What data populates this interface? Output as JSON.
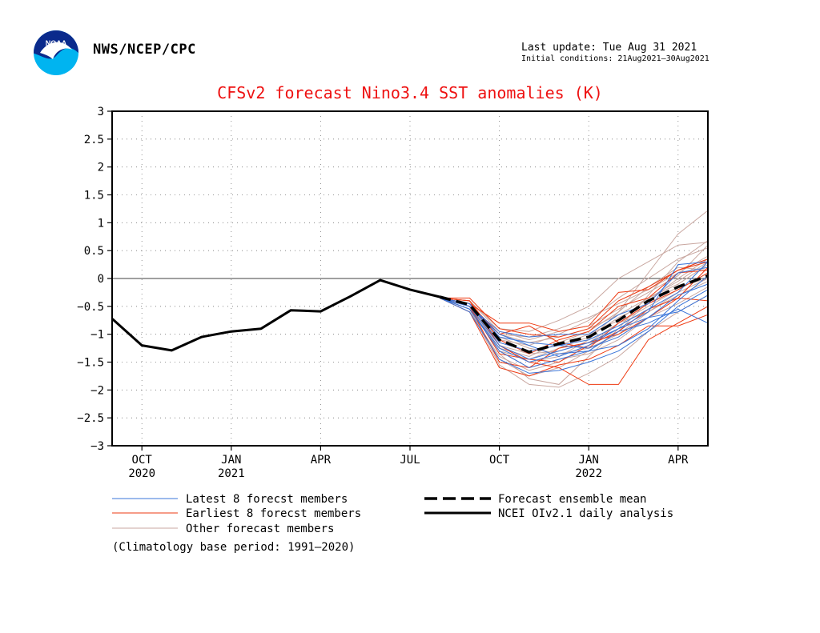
{
  "header": {
    "logo_text": "NOAA",
    "agency": "NWS/NCEP/CPC",
    "last_update": "Last update: Tue Aug 31 2021",
    "initial_conditions": "Initial conditions: 21Aug2021–30Aug2021"
  },
  "chart_data": {
    "type": "line",
    "title": "CFSv2 forecast Nino3.4 SST anomalies (K)",
    "xlabel": "",
    "ylabel": "",
    "ylim": [
      -3,
      3
    ],
    "y_ticks": [
      "3",
      "2.5",
      "2",
      "1.5",
      "1",
      "0.5",
      "0",
      "−0.5",
      "−1",
      "−1.5",
      "−2",
      "−2.5",
      "−3"
    ],
    "x_range": [
      "2020-09",
      "2022-05"
    ],
    "x_ticks": [
      {
        "month": "2020-10",
        "label": "OCT",
        "year": "2020"
      },
      {
        "month": "2021-01",
        "label": "JAN",
        "year": "2021"
      },
      {
        "month": "2021-04",
        "label": "APR",
        "year": ""
      },
      {
        "month": "2021-07",
        "label": "JUL",
        "year": ""
      },
      {
        "month": "2021-10",
        "label": "OCT",
        "year": ""
      },
      {
        "month": "2022-01",
        "label": "JAN",
        "year": "2022"
      },
      {
        "month": "2022-04",
        "label": "APR",
        "year": ""
      }
    ],
    "grid": true,
    "zero_line": true,
    "colors": {
      "observed": "#000000",
      "ensemble_mean": "#000000",
      "latest": "#3a74d8",
      "earliest": "#ee3a12",
      "other": "#c9a7a0"
    },
    "observed": {
      "name": "NCEI OIv2.1 daily analysis",
      "x": [
        "2020-09",
        "2020-10",
        "2020-11",
        "2020-12",
        "2021-01",
        "2021-02",
        "2021-03",
        "2021-04",
        "2021-05",
        "2021-06",
        "2021-07",
        "2021-08"
      ],
      "y": [
        -0.72,
        -1.2,
        -1.29,
        -1.05,
        -0.95,
        -0.9,
        -0.57,
        -0.59,
        -0.32,
        -0.03,
        -0.2,
        -0.33
      ]
    },
    "ensemble_mean": {
      "name": "Forecast ensemble mean",
      "x": [
        "2021-08",
        "2021-09",
        "2021-10",
        "2021-11",
        "2021-12",
        "2022-01",
        "2022-02",
        "2022-03",
        "2022-04",
        "2022-05"
      ],
      "y": [
        -0.33,
        -0.47,
        -1.1,
        -1.32,
        -1.17,
        -1.05,
        -0.75,
        -0.4,
        -0.15,
        0.05
      ]
    },
    "members_x": [
      "2021-08",
      "2021-09",
      "2021-10",
      "2021-11",
      "2021-12",
      "2022-01",
      "2022-02",
      "2022-03",
      "2022-04",
      "2022-05"
    ],
    "latest_members": {
      "name": "Latest 8 forecst members",
      "series": [
        [
          -0.35,
          -0.45,
          -1.05,
          -1.15,
          -1.2,
          -1.1,
          -0.85,
          -0.55,
          -0.25,
          0.3
        ],
        [
          -0.35,
          -0.5,
          -1.2,
          -1.45,
          -1.3,
          -1.15,
          -0.9,
          -0.6,
          0.25,
          0.3
        ],
        [
          -0.35,
          -0.55,
          -1.3,
          -1.6,
          -1.45,
          -1.3,
          -0.95,
          -0.8,
          -0.55,
          -0.8
        ],
        [
          -0.35,
          -0.5,
          -0.95,
          -1.05,
          -1.0,
          -1.0,
          -0.65,
          -0.45,
          0.1,
          0.2
        ],
        [
          -0.35,
          -0.6,
          -1.45,
          -1.7,
          -1.65,
          -1.5,
          -1.3,
          -0.95,
          -0.5,
          -0.2
        ],
        [
          -0.35,
          -0.45,
          -1.15,
          -1.3,
          -1.2,
          -1.25,
          -1.05,
          -0.7,
          -0.3,
          -0.1
        ],
        [
          -0.35,
          -0.5,
          -1.0,
          -1.2,
          -1.4,
          -1.2,
          -0.9,
          -0.7,
          -0.6,
          -0.3
        ],
        [
          -0.35,
          -0.55,
          -1.25,
          -1.5,
          -1.35,
          -1.3,
          -1.2,
          -0.9,
          -0.4,
          0.05
        ]
      ]
    },
    "earliest_members": {
      "name": "Earliest 8 forecst members",
      "series": [
        [
          -0.35,
          -0.35,
          -0.9,
          -1.0,
          -1.05,
          -0.9,
          -0.4,
          -0.15,
          0.15,
          0.35
        ],
        [
          -0.35,
          -0.4,
          -1.2,
          -1.5,
          -1.6,
          -1.9,
          -1.9,
          -1.1,
          -0.8,
          -0.5
        ],
        [
          -0.35,
          -0.45,
          -0.8,
          -0.8,
          -0.95,
          -0.85,
          -0.25,
          -0.2,
          0.15,
          0.3
        ],
        [
          -0.35,
          -0.5,
          -1.5,
          -1.6,
          -1.25,
          -1.15,
          -1.0,
          -0.7,
          -0.35,
          -0.4
        ],
        [
          -0.35,
          -0.45,
          -1.0,
          -0.85,
          -1.15,
          -1.25,
          -0.8,
          -0.45,
          -0.2,
          0.1
        ],
        [
          -0.35,
          -0.6,
          -1.6,
          -1.75,
          -1.55,
          -1.45,
          -1.2,
          -0.85,
          -0.85,
          -0.65
        ],
        [
          -0.35,
          -0.4,
          -1.1,
          -1.35,
          -1.1,
          -0.95,
          -0.5,
          -0.35,
          0.1,
          0.15
        ],
        [
          -0.35,
          -0.5,
          -1.35,
          -1.45,
          -1.5,
          -1.2,
          -0.95,
          -0.55,
          -0.35,
          0.2
        ]
      ]
    },
    "other_members": {
      "name": "Other forecast members",
      "series": [
        [
          -0.35,
          -0.45,
          -1.2,
          -1.5,
          -1.4,
          -1.1,
          -0.6,
          0.1,
          0.8,
          1.22
        ],
        [
          -0.35,
          -0.5,
          -1.35,
          -1.8,
          -1.9,
          -1.4,
          -0.9,
          -0.3,
          0.3,
          0.68
        ],
        [
          -0.35,
          -0.4,
          -0.9,
          -0.95,
          -0.75,
          -0.5,
          0.0,
          0.3,
          0.6,
          0.65
        ],
        [
          -0.35,
          -0.55,
          -1.55,
          -1.9,
          -1.95,
          -1.7,
          -1.4,
          -0.95,
          -0.6,
          -0.3
        ],
        [
          -0.35,
          -0.5,
          -1.1,
          -1.2,
          -1.0,
          -0.75,
          -0.35,
          0.0,
          0.35,
          0.55
        ],
        [
          -0.35,
          -0.45,
          -1.0,
          -1.05,
          -0.9,
          -0.7,
          -0.45,
          -0.2,
          0.1,
          0.4
        ],
        [
          -0.35,
          -0.6,
          -1.4,
          -1.65,
          -1.5,
          -1.2,
          -0.8,
          -0.6,
          -0.25,
          0.0
        ],
        [
          -0.35,
          -0.5,
          -1.25,
          -1.4,
          -1.15,
          -0.95,
          -0.6,
          -0.15,
          0.2,
          0.15
        ],
        [
          -0.35,
          -0.45,
          -1.15,
          -1.3,
          -1.2,
          -1.0,
          -0.75,
          -0.35,
          -0.1,
          0.25
        ],
        [
          -0.35,
          -0.55,
          -1.3,
          -1.6,
          -1.45,
          -1.35,
          -1.1,
          -0.7,
          -0.45,
          -0.15
        ],
        [
          -0.35,
          -0.4,
          -0.95,
          -1.1,
          -0.95,
          -0.85,
          -0.55,
          -0.25,
          0.05,
          0.6
        ],
        [
          -0.35,
          -0.5,
          -1.2,
          -1.35,
          -1.3,
          -1.15,
          -0.8,
          -0.5,
          -0.2,
          0.1
        ],
        [
          -0.35,
          -0.45,
          -1.05,
          -1.25,
          -1.35,
          -1.25,
          -1.0,
          -0.6,
          -0.3,
          -0.05
        ],
        [
          -0.35,
          -0.55,
          -1.45,
          -1.75,
          -1.6,
          -1.3,
          -0.95,
          -0.4,
          0.0,
          0.35
        ],
        [
          -0.35,
          -0.5,
          -1.0,
          -1.15,
          -1.05,
          -0.9,
          -0.65,
          -0.35,
          -0.05,
          0.3
        ],
        [
          -0.35,
          -0.45,
          -1.3,
          -1.45,
          -1.25,
          -1.05,
          -0.7,
          -0.45,
          -0.15,
          0.0
        ]
      ]
    },
    "legend": {
      "placement": "bottom",
      "items": [
        {
          "key": "latest",
          "label": "Latest 8 forecst members"
        },
        {
          "key": "earliest",
          "label": "Earliest 8 forecst members"
        },
        {
          "key": "other",
          "label": "Other forecast members"
        },
        {
          "key": "ensemble_mean",
          "label": "Forecast ensemble mean"
        },
        {
          "key": "observed",
          "label": "NCEI OIv2.1 daily analysis"
        }
      ]
    },
    "note": "(Climatology base period: 1991–2020)"
  }
}
